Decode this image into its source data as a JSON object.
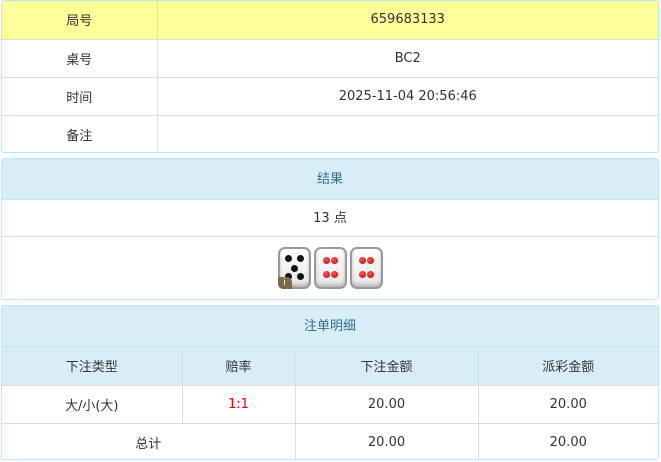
{
  "info": {
    "rows": [
      {
        "label": "局号",
        "value": "659683133"
      },
      {
        "label": "桌号",
        "value": "BC2"
      },
      {
        "label": "时间",
        "value": "2025-11-04 20:56:46"
      },
      {
        "label": "备注",
        "value": ""
      }
    ]
  },
  "result": {
    "title": "结果",
    "points": "13 点",
    "dice": [
      5,
      4,
      4
    ],
    "info_badge": "i"
  },
  "bets": {
    "title": "注单明细",
    "headers": [
      "下注类型",
      "赔率",
      "下注金额",
      "派彩金额"
    ],
    "rows": [
      {
        "type": "大/小(大)",
        "odds": "1:1",
        "amount": "20.00",
        "payout": "20.00"
      }
    ],
    "total": {
      "label": "总计",
      "amount": "20.00",
      "payout": "20.00"
    }
  },
  "colors": {
    "header_bg": "#d9edf7",
    "highlight": "#ffff99",
    "odds": "#ee0000"
  }
}
